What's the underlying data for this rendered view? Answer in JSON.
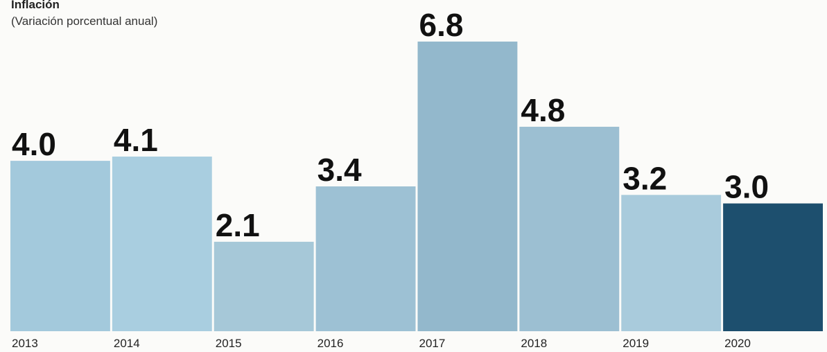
{
  "chart_data": {
    "type": "bar",
    "title": "Inflación",
    "subtitle": "(Variación porcentual anual)",
    "categories": [
      "2013",
      "2014",
      "2015",
      "2016",
      "2017",
      "2018",
      "2019",
      "2020"
    ],
    "values": [
      4.0,
      4.1,
      2.1,
      3.4,
      6.8,
      4.8,
      3.2,
      3.0
    ],
    "value_labels": [
      "4.0",
      "4.1",
      "2.1",
      "3.4",
      "6.8",
      "4.8",
      "3.2",
      "3.0"
    ],
    "colors": [
      "#a3c9dc",
      "#a9cee0",
      "#a6c8d8",
      "#9dc1d4",
      "#93b8cc",
      "#9cbfd2",
      "#a9cbdc",
      "#1d4f6e"
    ]
  }
}
